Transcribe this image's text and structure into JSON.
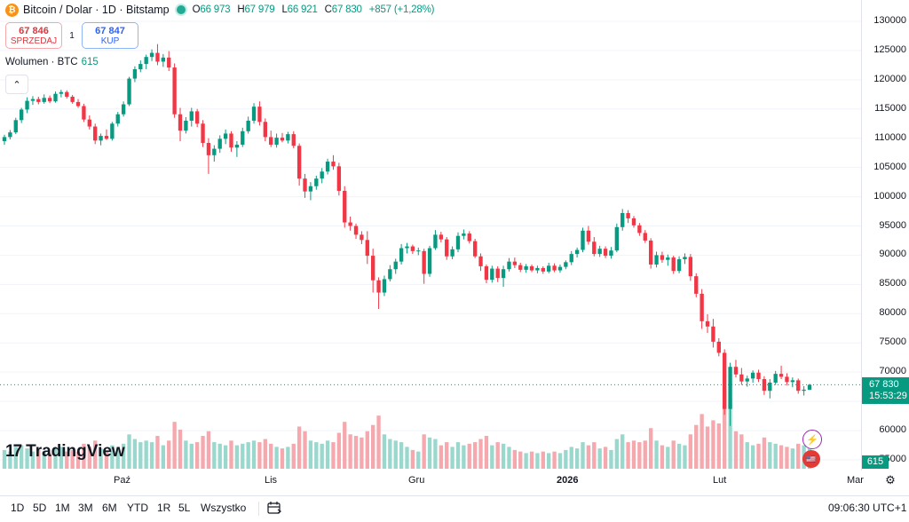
{
  "header": {
    "symbol_label": "Bitcoin / Dolar · 1D · Bitstamp",
    "btc_glyph": "₿",
    "ohlc": {
      "o_key": "O",
      "o": "66 973",
      "h_key": "H",
      "h": "67 979",
      "l_key": "L",
      "l": "66 921",
      "c_key": "C",
      "c": "67 830",
      "change": "+857 (+1,28%)"
    }
  },
  "trade": {
    "sell_price": "67 846",
    "sell_label": "SPRZEDAJ",
    "spread": "1",
    "buy_price": "67 847",
    "buy_label": "KUP"
  },
  "volume_label": {
    "name": "Wolumen · BTC",
    "value": "615"
  },
  "collapse_glyph": "⌃",
  "logo": {
    "mark": "17",
    "name": "TradingView"
  },
  "price_scale": {
    "ticks": [
      "130000",
      "125000",
      "120000",
      "115000",
      "110000",
      "105000",
      "100000",
      "95000",
      "90000",
      "85000",
      "80000",
      "75000",
      "70000",
      "65000",
      "60000",
      "55000"
    ],
    "last_price": "67 830",
    "countdown": "15:53:29",
    "volume_value": "615"
  },
  "time_axis": {
    "labels": [
      {
        "text": "Paź",
        "bold": false
      },
      {
        "text": "Lis",
        "bold": false
      },
      {
        "text": "Gru",
        "bold": false
      },
      {
        "text": "2026",
        "bold": true
      },
      {
        "text": "Lut",
        "bold": false
      },
      {
        "text": "Mar",
        "bold": false
      }
    ]
  },
  "toolbar": {
    "ranges": [
      "1D",
      "5D",
      "1M",
      "3M",
      "6M",
      "YTD",
      "1R",
      "5L",
      "Wszystko"
    ],
    "clock": "09:06:30 UTC+1"
  },
  "icons": {
    "bolt": "⚡",
    "flag": "🇺🇸",
    "settings": "⚙",
    "calendar": "calendar-icon"
  },
  "colors": {
    "up": "#089981",
    "down": "#f23645",
    "vol_up": "#9ad8cd",
    "vol_down": "#f5a9ae",
    "grid": "#f0f3fa",
    "last_line": "#089981"
  },
  "chart_data": {
    "type": "candlestick",
    "title": "Bitcoin / Dolar · 1D · Bitstamp",
    "ylim": [
      55000,
      131000
    ],
    "y_unit": "USD",
    "grid": true,
    "x_ticks": [
      "Paź",
      "Lis",
      "Gru",
      "2026",
      "Lut",
      "Mar"
    ],
    "volume_series_name": "Wolumen · BTC",
    "candles": [
      [
        109500,
        110600,
        108900,
        110200,
        12
      ],
      [
        110200,
        111400,
        109800,
        111000,
        11
      ],
      [
        111000,
        113500,
        110700,
        113100,
        14
      ],
      [
        113100,
        115200,
        112600,
        114900,
        15
      ],
      [
        114900,
        117000,
        114300,
        116400,
        13
      ],
      [
        116400,
        117200,
        115700,
        116700,
        11
      ],
      [
        116700,
        117100,
        115800,
        116200,
        12
      ],
      [
        116200,
        117500,
        115900,
        116900,
        11
      ],
      [
        116900,
        117300,
        116000,
        116300,
        10
      ],
      [
        116300,
        118000,
        116100,
        117600,
        13
      ],
      [
        117600,
        118300,
        117000,
        117900,
        14
      ],
      [
        117900,
        118200,
        116800,
        117100,
        11
      ],
      [
        117100,
        117400,
        115900,
        116200,
        12
      ],
      [
        116200,
        116700,
        115200,
        115500,
        11
      ],
      [
        115500,
        115900,
        112800,
        113200,
        16
      ],
      [
        113200,
        113900,
        111500,
        112000,
        14
      ],
      [
        112000,
        112500,
        109000,
        109600,
        18
      ],
      [
        109600,
        110800,
        108800,
        110400,
        13
      ],
      [
        110400,
        111500,
        109700,
        109900,
        12
      ],
      [
        109900,
        112800,
        109600,
        112500,
        15
      ],
      [
        112500,
        114500,
        112000,
        114100,
        14
      ],
      [
        114100,
        116300,
        113700,
        115800,
        16
      ],
      [
        115800,
        120500,
        115500,
        120200,
        22
      ],
      [
        120200,
        122300,
        119600,
        121800,
        19
      ],
      [
        121800,
        123300,
        121300,
        122700,
        17
      ],
      [
        122700,
        124300,
        121800,
        123900,
        18
      ],
      [
        123900,
        125200,
        123200,
        124600,
        17
      ],
      [
        124600,
        126100,
        122500,
        123100,
        21
      ],
      [
        123100,
        124400,
        122200,
        123800,
        15
      ],
      [
        123800,
        124900,
        121500,
        122100,
        18
      ],
      [
        122100,
        122800,
        113500,
        114100,
        30
      ],
      [
        114100,
        115200,
        109500,
        111300,
        25
      ],
      [
        111300,
        113600,
        110800,
        113000,
        18
      ],
      [
        113000,
        115200,
        112000,
        114600,
        16
      ],
      [
        114600,
        115000,
        111900,
        112500,
        17
      ],
      [
        112500,
        113100,
        108500,
        109200,
        21
      ],
      [
        109200,
        110000,
        103900,
        107100,
        24
      ],
      [
        107100,
        108800,
        106000,
        108200,
        17
      ],
      [
        108200,
        110500,
        107500,
        109900,
        16
      ],
      [
        109900,
        111500,
        109000,
        110800,
        15
      ],
      [
        110800,
        111200,
        107700,
        108400,
        18
      ],
      [
        108400,
        109500,
        106800,
        108900,
        15
      ],
      [
        108900,
        111800,
        108500,
        111200,
        16
      ],
      [
        111200,
        113700,
        110800,
        113000,
        17
      ],
      [
        113000,
        116000,
        112500,
        115400,
        18
      ],
      [
        115400,
        116300,
        112200,
        112800,
        17
      ],
      [
        112800,
        113400,
        109500,
        110200,
        19
      ],
      [
        110200,
        111300,
        108500,
        108900,
        16
      ],
      [
        108900,
        110800,
        108400,
        110100,
        14
      ],
      [
        110100,
        110900,
        109300,
        109600,
        13
      ],
      [
        109600,
        111100,
        109100,
        110700,
        14
      ],
      [
        110700,
        111200,
        108300,
        108700,
        16
      ],
      [
        108700,
        109100,
        101900,
        103100,
        27
      ],
      [
        103100,
        103900,
        99800,
        100900,
        24
      ],
      [
        100900,
        102500,
        99400,
        101800,
        18
      ],
      [
        101800,
        103600,
        101200,
        103100,
        17
      ],
      [
        103100,
        104900,
        102300,
        104300,
        16
      ],
      [
        104300,
        106500,
        103800,
        106000,
        18
      ],
      [
        106000,
        107100,
        104600,
        105200,
        17
      ],
      [
        105200,
        105800,
        100200,
        101000,
        23
      ],
      [
        101000,
        101800,
        94700,
        95600,
        30
      ],
      [
        95600,
        96600,
        94200,
        95000,
        22
      ],
      [
        95000,
        95400,
        92800,
        93500,
        21
      ],
      [
        93500,
        94100,
        91900,
        92600,
        20
      ],
      [
        92600,
        94100,
        88500,
        89900,
        24
      ],
      [
        89900,
        91100,
        83600,
        85700,
        28
      ],
      [
        85700,
        86200,
        80800,
        83600,
        34
      ],
      [
        83600,
        86500,
        83000,
        85900,
        22
      ],
      [
        85900,
        88300,
        85500,
        87600,
        19
      ],
      [
        87600,
        89400,
        86800,
        88900,
        18
      ],
      [
        88900,
        91900,
        88400,
        91200,
        17
      ],
      [
        91200,
        92100,
        90300,
        91500,
        14
      ],
      [
        91500,
        91800,
        90200,
        90700,
        12
      ],
      [
        90700,
        91300,
        90000,
        90800,
        11
      ],
      [
        90700,
        91100,
        85100,
        86800,
        22
      ],
      [
        86800,
        91600,
        86300,
        91200,
        20
      ],
      [
        91200,
        94300,
        90900,
        93500,
        19
      ],
      [
        93500,
        94000,
        92200,
        92700,
        15
      ],
      [
        92700,
        93100,
        89200,
        89800,
        17
      ],
      [
        89800,
        91500,
        89300,
        91000,
        14
      ],
      [
        91000,
        93900,
        90500,
        93300,
        17
      ],
      [
        93300,
        94400,
        92700,
        93700,
        15
      ],
      [
        93700,
        94100,
        92000,
        92400,
        16
      ],
      [
        92400,
        92800,
        89500,
        89800,
        17
      ],
      [
        89800,
        90300,
        87300,
        88100,
        19
      ],
      [
        88100,
        88400,
        85200,
        85800,
        21
      ],
      [
        85800,
        88200,
        85300,
        87700,
        15
      ],
      [
        87700,
        88100,
        85400,
        86100,
        17
      ],
      [
        86100,
        88200,
        84600,
        87600,
        16
      ],
      [
        87600,
        89500,
        87200,
        88900,
        14
      ],
      [
        88900,
        89600,
        87800,
        88300,
        12
      ],
      [
        88300,
        88700,
        87100,
        87500,
        11
      ],
      [
        87500,
        88500,
        87000,
        88100,
        10
      ],
      [
        88100,
        88400,
        87100,
        87400,
        11
      ],
      [
        87400,
        88200,
        86900,
        87800,
        10
      ],
      [
        87800,
        88100,
        86800,
        87200,
        11
      ],
      [
        87200,
        88700,
        86900,
        88200,
        10
      ],
      [
        88200,
        88600,
        87100,
        87400,
        11
      ],
      [
        87400,
        88400,
        87000,
        88000,
        10
      ],
      [
        88000,
        89100,
        87600,
        88800,
        12
      ],
      [
        88800,
        90700,
        88300,
        90200,
        14
      ],
      [
        90200,
        91300,
        89600,
        90900,
        13
      ],
      [
        90900,
        94700,
        90500,
        94200,
        17
      ],
      [
        94200,
        95000,
        91800,
        92300,
        15
      ],
      [
        92300,
        93100,
        89800,
        90200,
        17
      ],
      [
        90200,
        91600,
        89700,
        91100,
        13
      ],
      [
        91100,
        91500,
        89500,
        89900,
        14
      ],
      [
        89900,
        91400,
        89400,
        90800,
        12
      ],
      [
        90800,
        95400,
        90500,
        94800,
        19
      ],
      [
        94800,
        97900,
        94200,
        97200,
        22
      ],
      [
        97200,
        97700,
        95500,
        96300,
        17
      ],
      [
        96300,
        96700,
        94700,
        95100,
        18
      ],
      [
        95100,
        95500,
        93300,
        93800,
        17
      ],
      [
        93800,
        94300,
        92100,
        92500,
        18
      ],
      [
        92500,
        92900,
        87700,
        88400,
        26
      ],
      [
        88400,
        90600,
        87900,
        90000,
        18
      ],
      [
        90000,
        90600,
        88700,
        89200,
        15
      ],
      [
        89200,
        90100,
        88200,
        89600,
        14
      ],
      [
        89600,
        89900,
        86800,
        87300,
        18
      ],
      [
        87300,
        89800,
        86900,
        89300,
        16
      ],
      [
        89300,
        90300,
        88500,
        89700,
        15
      ],
      [
        89700,
        90200,
        85600,
        86400,
        22
      ],
      [
        86400,
        86900,
        82800,
        83400,
        28
      ],
      [
        83400,
        84200,
        77400,
        78700,
        35
      ],
      [
        78700,
        79900,
        76700,
        77800,
        27
      ],
      [
        77800,
        79100,
        74200,
        75200,
        31
      ],
      [
        75200,
        75800,
        72700,
        73300,
        29
      ],
      [
        73300,
        73900,
        62700,
        63700,
        50
      ],
      [
        63700,
        71600,
        60800,
        70900,
        45
      ],
      [
        70900,
        72100,
        69100,
        69600,
        24
      ],
      [
        69600,
        70700,
        67800,
        68400,
        22
      ],
      [
        68400,
        69400,
        67500,
        68900,
        17
      ],
      [
        68900,
        70300,
        68200,
        69900,
        15
      ],
      [
        69900,
        70400,
        68300,
        68800,
        16
      ],
      [
        68800,
        69300,
        66100,
        66800,
        20
      ],
      [
        66800,
        68800,
        65500,
        68200,
        17
      ],
      [
        68200,
        70200,
        67800,
        69700,
        16
      ],
      [
        69700,
        71100,
        68800,
        69200,
        15
      ],
      [
        69200,
        69800,
        67700,
        68300,
        14
      ],
      [
        68300,
        69100,
        67400,
        68600,
        13
      ],
      [
        68600,
        68900,
        66300,
        66800,
        16
      ],
      [
        66800,
        67600,
        66000,
        67000,
        15
      ],
      [
        66973,
        67979,
        66921,
        67830,
        14
      ]
    ]
  }
}
